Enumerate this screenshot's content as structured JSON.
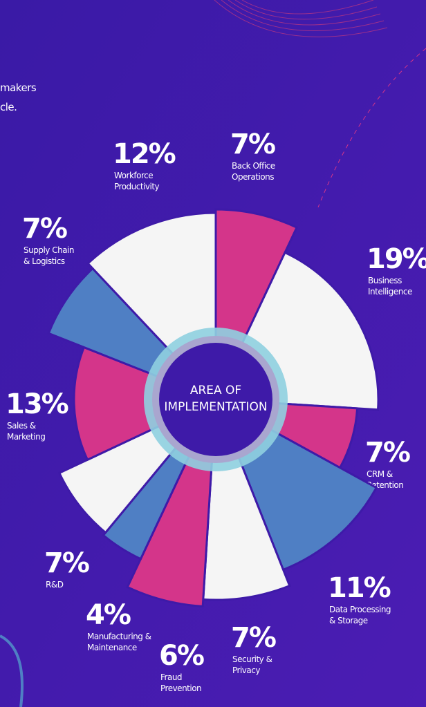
{
  "chart_data": {
    "type": "radial",
    "annotations": [
      "makers",
      "cle."
    ],
    "center_label": [
      "AREA OF",
      "IMPLEMENTATION"
    ],
    "categories": [
      [
        "Back Office",
        "Operations"
      ],
      [
        "Business",
        "Intelligence"
      ],
      [
        "CRM &",
        "Retention"
      ],
      [
        "Data Processing",
        "& Storage"
      ],
      [
        "Security &",
        "Privacy"
      ],
      [
        "Fraud",
        "Prevention"
      ],
      [
        "Manufacturing &",
        "Maintenance"
      ],
      [
        "R&D"
      ],
      [
        "Sales &",
        "Marketing"
      ],
      [
        "Supply Chain",
        "& Logistics"
      ],
      [
        "Workforce",
        "Productivity"
      ]
    ],
    "values": [
      7,
      19,
      7,
      11,
      7,
      6,
      4,
      7,
      13,
      7,
      12
    ],
    "value_labels": [
      "7%",
      "19%",
      "7%",
      "11%",
      "7%",
      "6%",
      "4%",
      "7%",
      "13%",
      "7%",
      "12%"
    ],
    "colors": [
      "#d4358a",
      "#f5f5f5",
      "#d4358a",
      "#4f7fc4",
      "#f5f5f5",
      "#d4358a",
      "#4f7fc4",
      "#f5f5f5",
      "#d4358a",
      "#4f7fc4",
      "#f5f5f5"
    ]
  }
}
